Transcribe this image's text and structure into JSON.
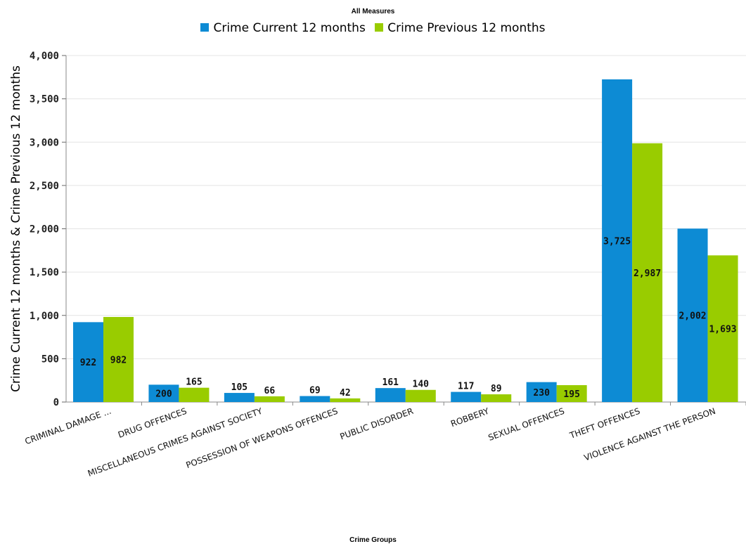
{
  "chart_data": {
    "type": "bar",
    "title": "All Measures",
    "xlabel": "Crime Groups",
    "ylabel": "Crime Current 12 months & Crime Previous 12 months",
    "ylim": [
      0,
      4000
    ],
    "yticks": [
      0,
      500,
      1000,
      1500,
      2000,
      2500,
      3000,
      3500,
      4000
    ],
    "ytick_labels": [
      "0",
      "500",
      "1,000",
      "1,500",
      "2,000",
      "2,500",
      "3,000",
      "3,500",
      "4,000"
    ],
    "grid": true,
    "legend_position": "top-center",
    "categories": [
      "CRIMINAL DAMAGE ...",
      "DRUG OFFENCES",
      "MISCELLANEOUS CRIMES AGAINST SOCIETY",
      "POSSESSION OF WEAPONS OFFENCES",
      "PUBLIC DISORDER",
      "ROBBERY",
      "SEXUAL OFFENCES",
      "THEFT OFFENCES",
      "VIOLENCE AGAINST THE PERSON"
    ],
    "series": [
      {
        "name": "Crime Current 12 months",
        "color": "#0d8bd4",
        "values": [
          922,
          200,
          105,
          69,
          161,
          117,
          230,
          3725,
          2002
        ],
        "labels": [
          "922",
          "200",
          "105",
          "69",
          "161",
          "117",
          "230",
          "3,725",
          "2,002"
        ]
      },
      {
        "name": "Crime Previous 12 months",
        "color": "#99cc00",
        "values": [
          982,
          165,
          66,
          42,
          140,
          89,
          195,
          2987,
          1693
        ],
        "labels": [
          "982",
          "165",
          "66",
          "42",
          "140",
          "89",
          "195",
          "2,987",
          "1,693"
        ]
      }
    ]
  }
}
